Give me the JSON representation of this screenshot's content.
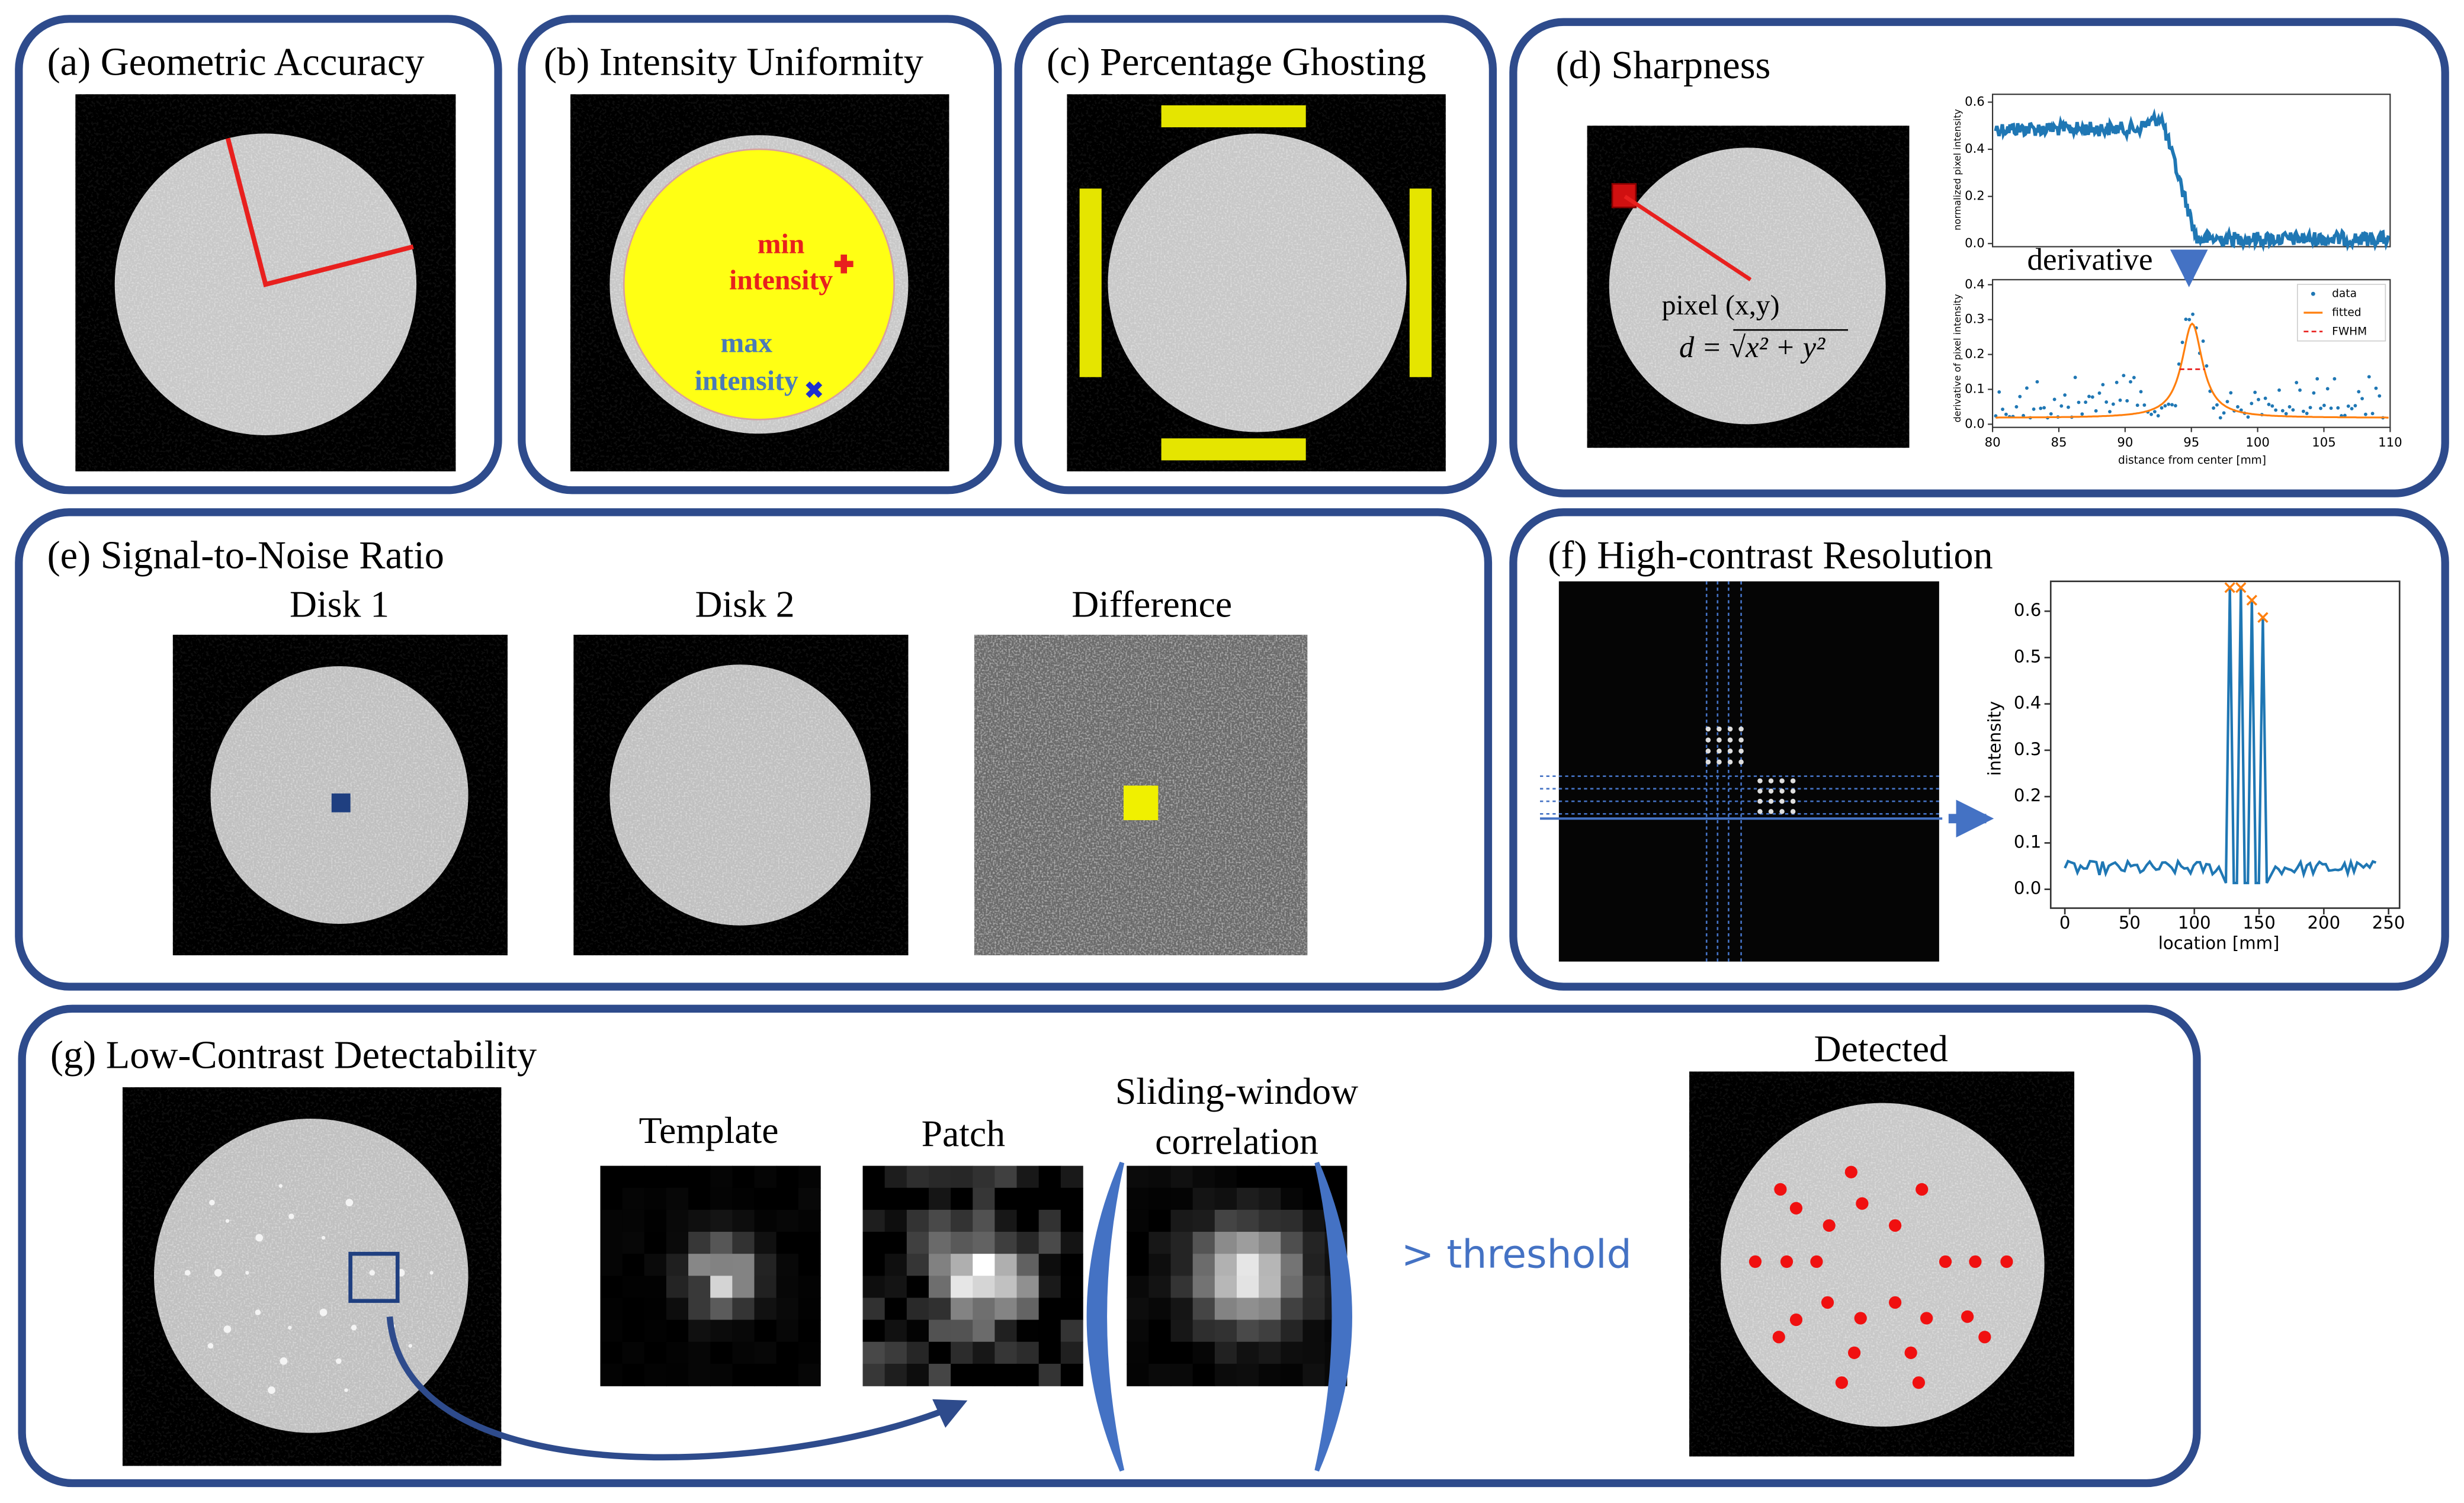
{
  "panel_a": {
    "title": "(a) Geometric Accuracy"
  },
  "panel_b": {
    "title": "(b) Intensity Uniformity",
    "min_label": [
      "min",
      "intensity"
    ],
    "max_label": [
      "max",
      "intensity"
    ]
  },
  "panel_c": {
    "title": "(c) Percentage Ghosting"
  },
  "panel_d": {
    "title": "(d) Sharpness",
    "pixel_label": "pixel (x,y)",
    "formula": "d = √x² + y²",
    "arrow_label": "derivative",
    "top_plot": {
      "ylabel": "normalized pixel intensity",
      "yticks": [
        "0.0",
        "0.2",
        "0.4",
        "0.6"
      ]
    },
    "bottom_plot": {
      "ylabel": "derivative of pixel intensity",
      "xlabel": "distance from center [mm]",
      "yticks": [
        "0.0",
        "0.1",
        "0.2",
        "0.3",
        "0.4"
      ],
      "xticks": [
        "80",
        "85",
        "90",
        "95",
        "100",
        "105",
        "110"
      ],
      "legend": [
        "data",
        "fitted",
        "FWHM"
      ]
    }
  },
  "panel_e": {
    "title": "(e) Signal-to-Noise Ratio",
    "images": [
      "Disk 1",
      "Disk 2",
      "Difference"
    ]
  },
  "panel_f": {
    "title": "(f) High-contrast Resolution",
    "plot": {
      "ylabel": "intensity",
      "xlabel": "location [mm]",
      "yticks": [
        "0.0",
        "0.1",
        "0.2",
        "0.3",
        "0.4",
        "0.5",
        "0.6"
      ],
      "xticks": [
        "0",
        "50",
        "100",
        "150",
        "200",
        "250"
      ]
    }
  },
  "panel_g": {
    "title": "(g) Low-Contrast Detectability",
    "template": "Template",
    "patch": "Patch",
    "correlation": [
      "Sliding-window",
      "correlation"
    ],
    "threshold": "> threshold",
    "detected": "Detected"
  }
}
